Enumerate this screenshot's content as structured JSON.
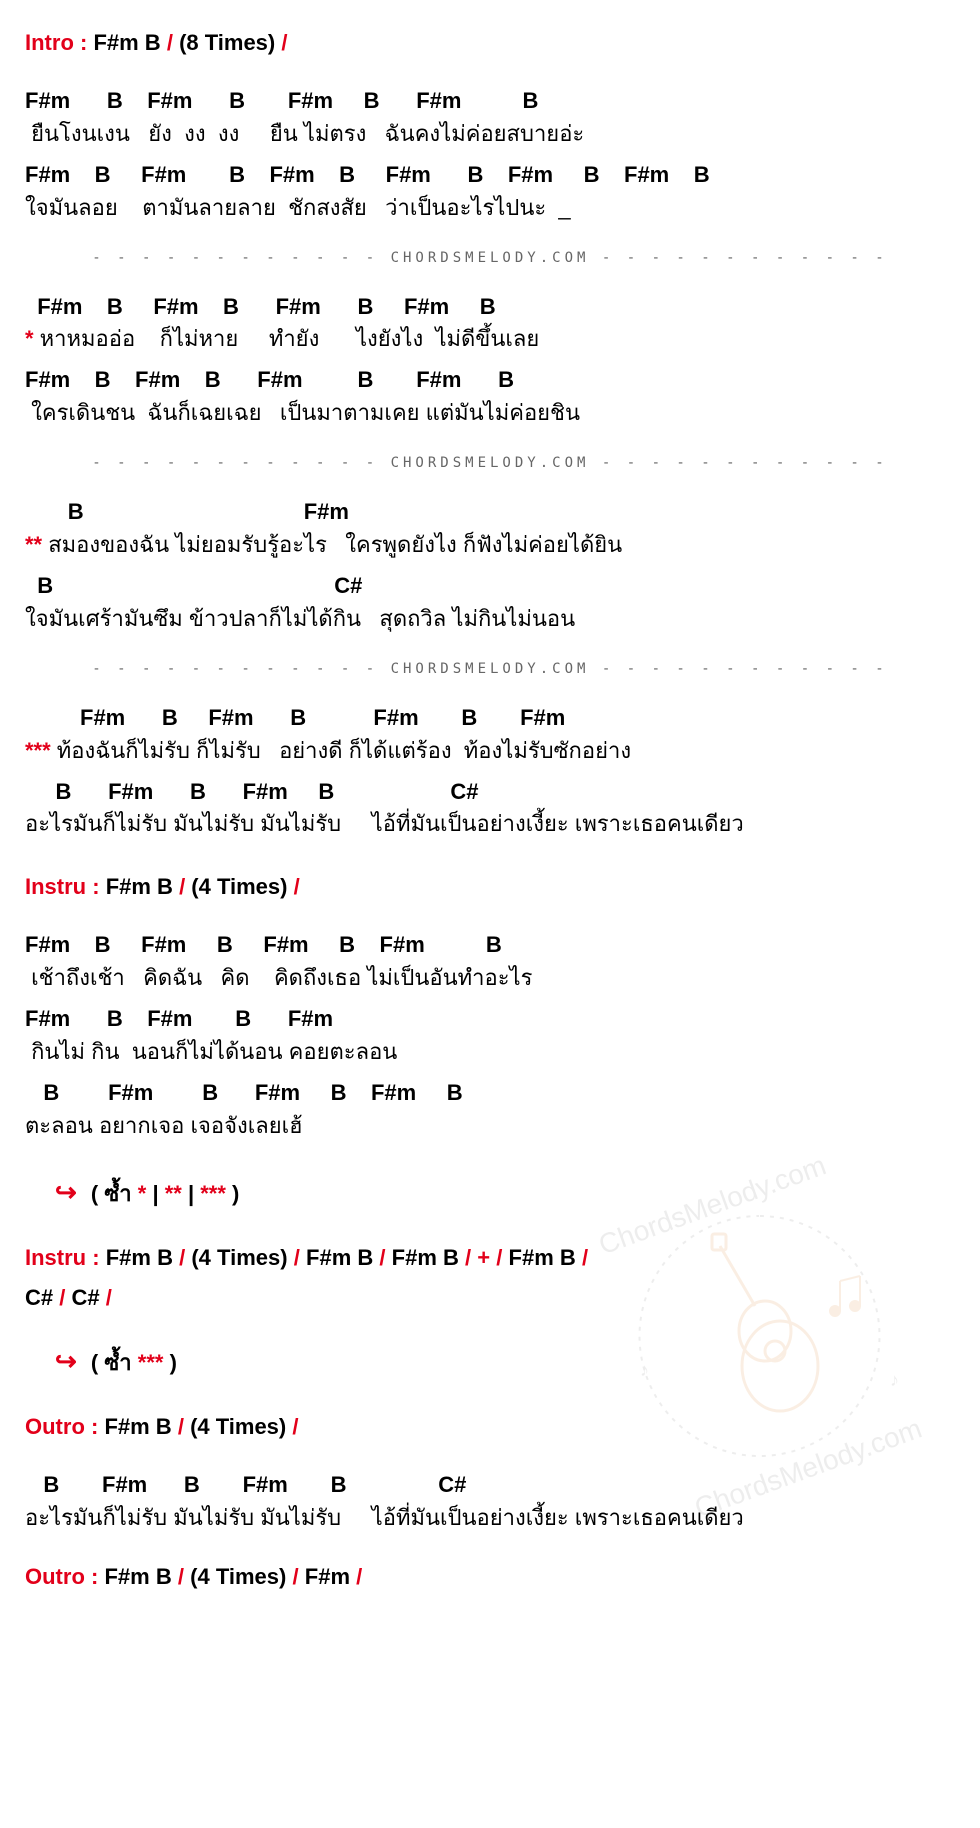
{
  "colors": {
    "accent": "#e2001a",
    "text": "#000000",
    "divider": "#666666",
    "background": "#ffffff",
    "watermark": "#f4a460"
  },
  "font": {
    "chord_size": 22,
    "lyric_size": 22,
    "section_size": 22,
    "divider_size": 14,
    "weight_bold": "bold"
  },
  "brand": "CHORDSMELODY.COM",
  "intro": {
    "label": "Intro :",
    "chords": "F#m  B",
    "times": "(8 Times)"
  },
  "verse1": {
    "line1": {
      "chords": "F#m      B    F#m      B       F#m     B      F#m          B",
      "lyrics": " ยืนโงนเงน   ยัง  งง  งง     ยืน ไม่ตรง   ฉันคงไม่ค่อยสบายอ่ะ"
    },
    "line2": {
      "chords": "F#m    B     F#m       B    F#m    B     F#m      B    F#m     B    F#m    B",
      "lyrics": "ใจมันลอย    ตามันลายลาย  ชักสงสัย   ว่าเป็นอะไรไปนะ  _"
    }
  },
  "verse2": {
    "star": "*",
    "line1": {
      "chords": "  F#m    B     F#m    B      F#m      B     F#m     B",
      "lyrics": " หาหมออ่อ    ก็ไม่หาย     ทำยัง      ไงยังไง  ไม่ดีขึ้นเลย"
    },
    "line2": {
      "chords": "F#m    B    F#m    B      F#m         B       F#m      B",
      "lyrics": " ใครเดินชน  ฉันก็เฉยเฉย   เป็นมาตามเคย แต่มันไม่ค่อยชิน"
    }
  },
  "verse3": {
    "star": "**",
    "line1": {
      "chords": "       B                                    F#m",
      "lyrics": " สมองของฉัน ไม่ยอมรับรู้อะไร   ใครพูดยังไง ก็ฟังไม่ค่อยได้ยิน"
    },
    "line2": {
      "chords": "  B                                              C#",
      "lyrics": "ใจมันเศร้ามันซึม ข้าวปลาก็ไม่ได้กิน   สุดถวิล ไม่กินไม่นอน"
    }
  },
  "verse4": {
    "star": "***",
    "line1": {
      "chords": "         F#m      B     F#m      B           F#m       B       F#m",
      "lyrics": " ท้องฉันก็ไม่รับ ก็ไม่รับ   อย่างดี ก็ได้แต่ร้อง  ท้องไม่รับซักอย่าง"
    },
    "line2": {
      "chords": "     B      F#m      B      F#m     B                   C#",
      "lyrics": "อะไรมันก็ไม่รับ มันไม่รับ มันไม่รับ     ไอ้ที่มันเป็นอย่างเงี้ยะ เพราะเธอคนเดียว"
    }
  },
  "instru1": {
    "label": "Instru :",
    "chords": "F#m  B",
    "times": "(4 Times)"
  },
  "verse5": {
    "line1": {
      "chords": "F#m    B     F#m     B     F#m     B    F#m          B",
      "lyrics": " เช้าถึงเช้า   คิดฉัน   คิด    คิดถึงเธอ ไม่เป็นอันทำอะไร"
    },
    "line2": {
      "chords": "F#m      B    F#m       B      F#m",
      "lyrics": " กินไม่ กิน  นอนก็ไม่ได้นอน คอยตะลอน"
    },
    "line3": {
      "chords": "   B        F#m        B      F#m     B    F#m     B",
      "lyrics": "ตะลอน อยากเจอ เจอจังเลยเฮ้"
    }
  },
  "repeat1": {
    "arrow": "↪",
    "text_open": "( ซ้ำ ",
    "seq": [
      "*",
      " | ",
      "**",
      " | ",
      "***"
    ],
    "text_close": " )"
  },
  "instru2": {
    "label": "Instru :",
    "seq": "F#m  B  / (4 Times) / F#m  B / F#m  B /  +  / F#m  B /",
    "line2": " C#  / C# /"
  },
  "repeat2": {
    "arrow": "↪",
    "text_open": "( ซ้ำ ",
    "seq": [
      "***"
    ],
    "text_close": " )"
  },
  "outro1": {
    "label": "Outro :",
    "chords": "F#m  B",
    "times": "(4 Times)"
  },
  "outro_verse": {
    "chords": "   B       F#m      B       F#m       B               C#",
    "lyrics": "อะไรมันก็ไม่รับ มันไม่รับ มันไม่รับ     ไอ้ที่มันเป็นอย่างเงี้ยะ เพราะเธอคนเดียว"
  },
  "outro2": {
    "label": "Outro :",
    "seq": "F#m  B  / (4 Times) / F#m /"
  }
}
